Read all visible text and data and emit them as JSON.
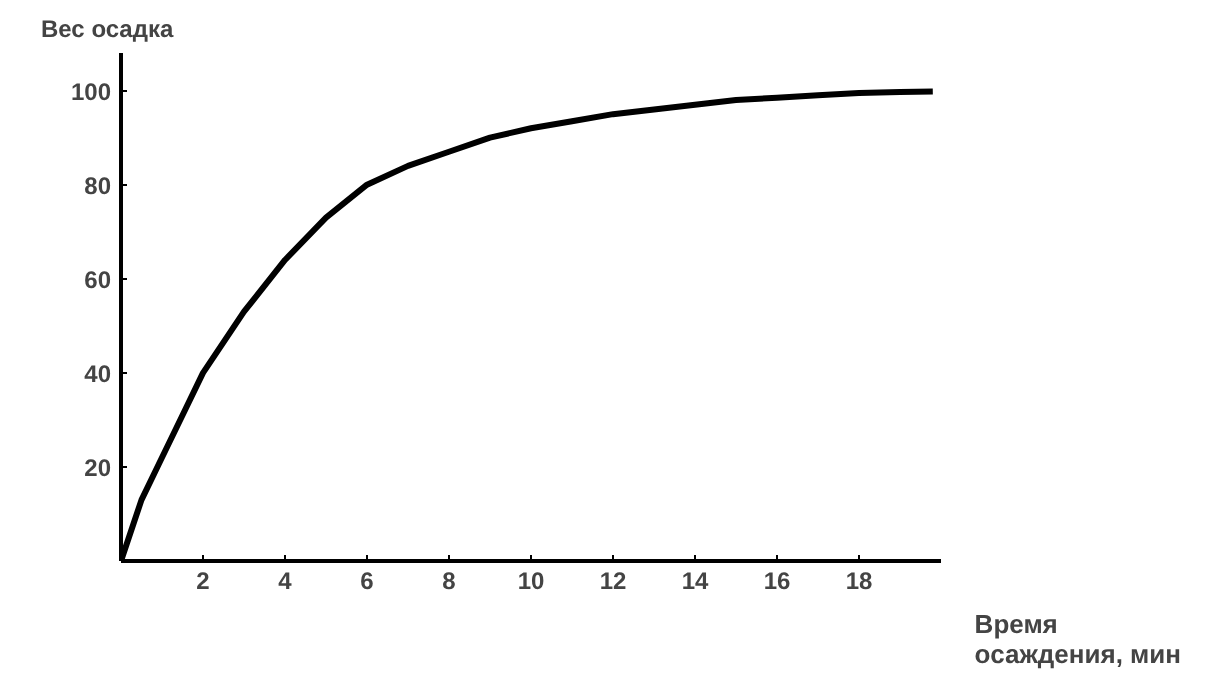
{
  "chart_data": {
    "type": "line",
    "xlabel": "Время осаждения, мин",
    "ylabel": "Вес осадка",
    "x": [
      0,
      0.5,
      1,
      1.5,
      2,
      3,
      4,
      5,
      6,
      7,
      8,
      9,
      10,
      11,
      12,
      13,
      14,
      15,
      16,
      17,
      18,
      19,
      19.8
    ],
    "series": [
      {
        "color": "#000000",
        "values": [
          0,
          13,
          22,
          31,
          40,
          53,
          64,
          73,
          80,
          84,
          87,
          90,
          92,
          93.5,
          95,
          96,
          97,
          98,
          98.5,
          99,
          99.5,
          99.7,
          99.8
        ]
      }
    ],
    "xlim": [
      0,
      20
    ],
    "ylim": [
      0,
      108
    ],
    "xticks": [
      2,
      4,
      6,
      8,
      10,
      12,
      14,
      16,
      18
    ],
    "yticks": [
      20,
      40,
      60,
      80,
      100
    ],
    "grid": false,
    "marker": "none",
    "line_style": "solid"
  }
}
